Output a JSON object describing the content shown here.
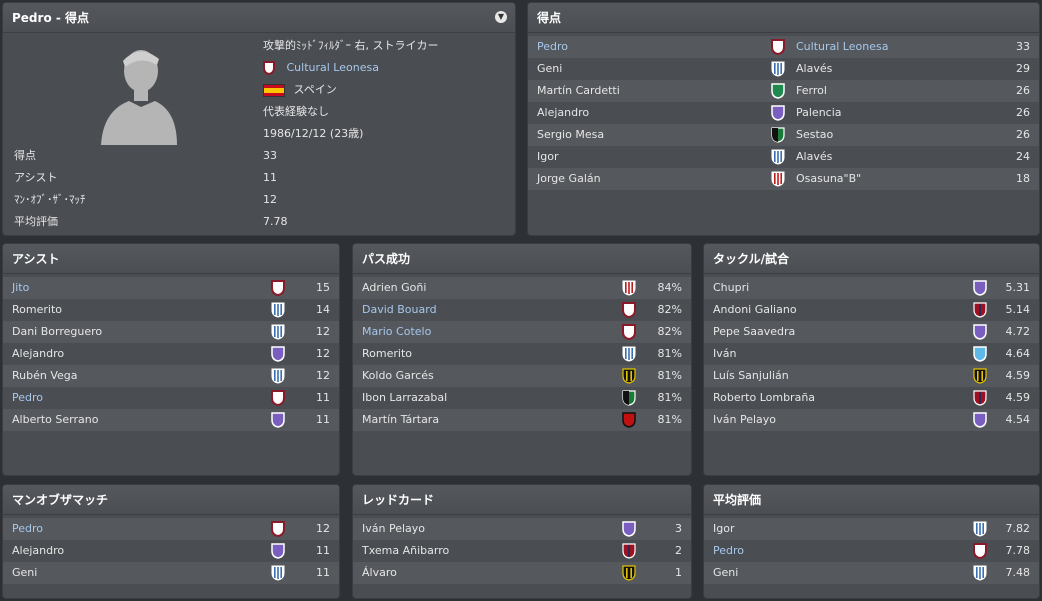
{
  "player": {
    "title": "Pedro - 得点",
    "position": "攻撃的ﾐｯﾄﾞﾌｨﾙﾀﾞｰ 右, ストライカー",
    "club": "Cultural Leonesa",
    "nation": "スペイン",
    "caps": "代表経験なし",
    "dob": "1986/12/12 (23歳)",
    "stats": [
      {
        "label": "得点",
        "value": "33"
      },
      {
        "label": "アシスト",
        "value": "11"
      },
      {
        "label": "ﾏﾝ･ｵﾌﾞ･ｻﾞ･ﾏｯﾁ",
        "value": "12"
      },
      {
        "label": "平均評価",
        "value": "7.78"
      }
    ]
  },
  "goals": {
    "title": "得点",
    "rows": [
      {
        "name": "Pedro",
        "club": "Cultural Leonesa",
        "value": "33",
        "shield": "white-red"
      },
      {
        "name": "Geni",
        "club": "Alavés",
        "value": "29",
        "shield": "stripes-blue"
      },
      {
        "name": "Martín Cardetti",
        "club": "Ferrol",
        "value": "26",
        "shield": "green"
      },
      {
        "name": "Alejandro",
        "club": "Palencia",
        "value": "26",
        "shield": "purple"
      },
      {
        "name": "Sergio Mesa",
        "club": "Sestao",
        "value": "26",
        "shield": "green-black"
      },
      {
        "name": "Igor",
        "club": "Alavés",
        "value": "24",
        "shield": "stripes-blue"
      },
      {
        "name": "Jorge Galán",
        "club": "Osasuna\"B\"",
        "value": "18",
        "shield": "red-stripes"
      }
    ]
  },
  "assists": {
    "title": "アシスト",
    "rows": [
      {
        "name": "Jito",
        "value": "15",
        "shield": "white-red"
      },
      {
        "name": "Romerito",
        "value": "14",
        "shield": "stripes-blue"
      },
      {
        "name": "Dani Borreguero",
        "value": "12",
        "shield": "stripes-blue"
      },
      {
        "name": "Alejandro",
        "value": "12",
        "shield": "purple"
      },
      {
        "name": "Rubén Vega",
        "value": "12",
        "shield": "stripes-blue"
      },
      {
        "name": "Pedro",
        "value": "11",
        "shield": "white-red"
      },
      {
        "name": "Alberto Serrano",
        "value": "11",
        "shield": "purple"
      }
    ]
  },
  "passes": {
    "title": "パス成功",
    "rows": [
      {
        "name": "Adrien Goñi",
        "value": "84%",
        "shield": "red-stripes"
      },
      {
        "name": "David Bouard",
        "value": "82%",
        "shield": "white-red"
      },
      {
        "name": "Mario Cotelo",
        "value": "82%",
        "shield": "white-red"
      },
      {
        "name": "Romerito",
        "value": "81%",
        "shield": "stripes-blue"
      },
      {
        "name": "Koldo Garcés",
        "value": "81%",
        "shield": "yellow-black"
      },
      {
        "name": "Ibon Larrazabal",
        "value": "81%",
        "shield": "green-black"
      },
      {
        "name": "Martín Tártara",
        "value": "81%",
        "shield": "red-black"
      }
    ]
  },
  "tackles": {
    "title": "タックル/試合",
    "rows": [
      {
        "name": "Chupri",
        "value": "5.31",
        "shield": "purple"
      },
      {
        "name": "Andoni Galiano",
        "value": "5.14",
        "shield": "red-dark"
      },
      {
        "name": "Pepe Saavedra",
        "value": "4.72",
        "shield": "purple"
      },
      {
        "name": "Iván",
        "value": "4.64",
        "shield": "lightblue"
      },
      {
        "name": "Luís Sanjulián",
        "value": "4.59",
        "shield": "yellow-black"
      },
      {
        "name": "Roberto Lombraña",
        "value": "4.59",
        "shield": "red-dark"
      },
      {
        "name": "Iván Pelayo",
        "value": "4.54",
        "shield": "purple"
      }
    ]
  },
  "motm": {
    "title": "マンオブザマッチ",
    "rows": [
      {
        "name": "Pedro",
        "value": "12",
        "shield": "white-red"
      },
      {
        "name": "Alejandro",
        "value": "11",
        "shield": "purple"
      },
      {
        "name": "Geni",
        "value": "11",
        "shield": "stripes-blue"
      }
    ]
  },
  "redcards": {
    "title": "レッドカード",
    "rows": [
      {
        "name": "Iván Pelayo",
        "value": "3",
        "shield": "purple"
      },
      {
        "name": "Txema Añibarro",
        "value": "2",
        "shield": "red-dark"
      },
      {
        "name": "Álvaro",
        "value": "1",
        "shield": "yellow-black"
      }
    ]
  },
  "rating": {
    "title": "平均評価",
    "rows": [
      {
        "name": "Igor",
        "value": "7.82",
        "shield": "stripes-blue"
      },
      {
        "name": "Pedro",
        "value": "7.78",
        "shield": "white-red"
      },
      {
        "name": "Geni",
        "value": "7.48",
        "shield": "stripes-blue"
      }
    ]
  }
}
